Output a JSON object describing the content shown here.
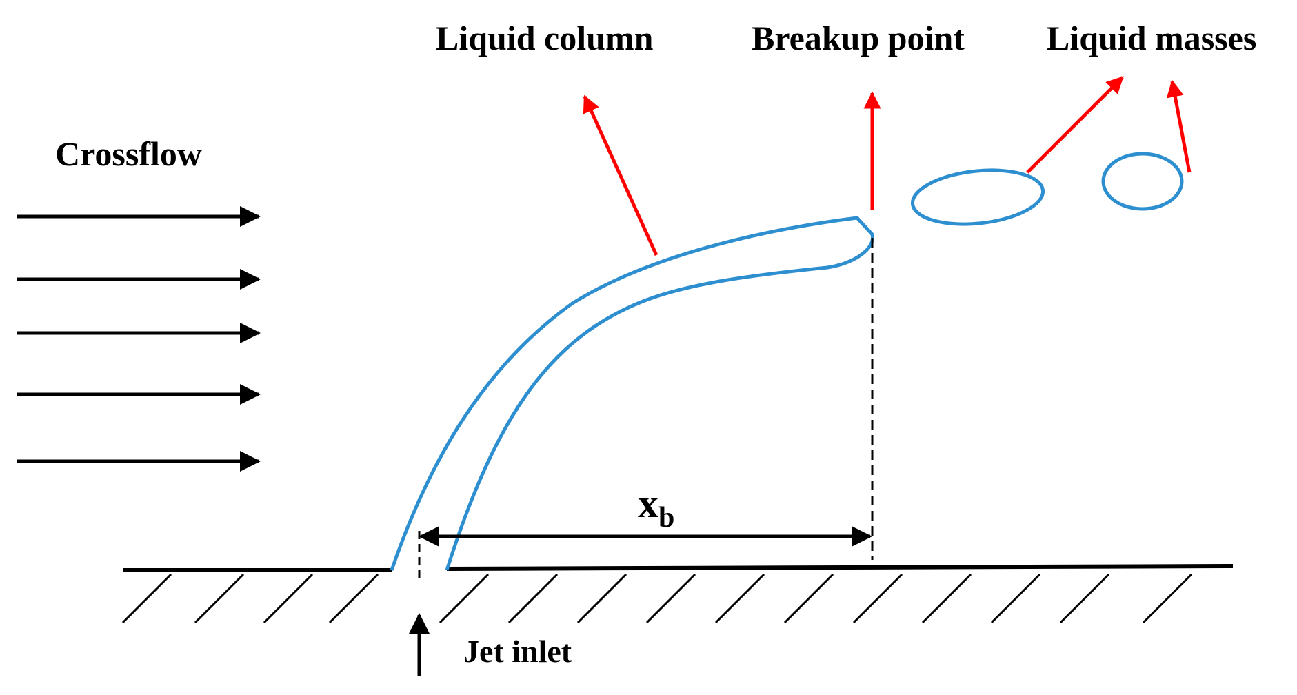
{
  "labels": {
    "crossflow": "Crossflow",
    "liquid_column": "Liquid column",
    "breakup_point": "Breakup point",
    "liquid_masses": "Liquid masses",
    "jet_inlet": "Jet inlet",
    "breakup_distance_symbol": "x",
    "breakup_distance_subscript": "b"
  },
  "colors": {
    "jet": "#2e8fd0",
    "callout_arrow": "#ff0000",
    "line": "#000000",
    "background": "#ffffff"
  }
}
